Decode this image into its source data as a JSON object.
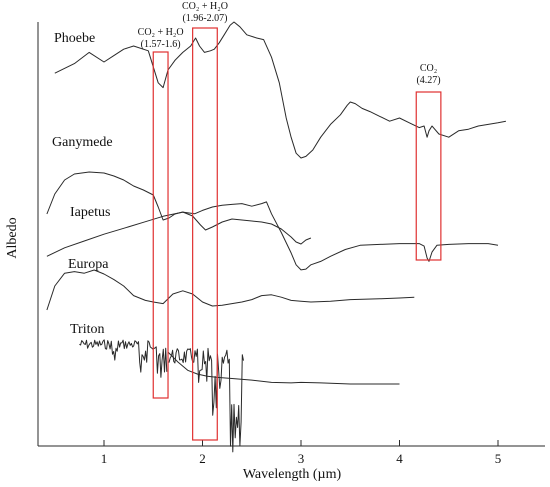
{
  "chart_data": {
    "type": "line",
    "xlabel": "Wavelength (µm)",
    "ylabel": "Albedo",
    "xlim": [
      0.35,
      5.4
    ],
    "xticks": [
      "1",
      "2",
      "3",
      "4",
      "5"
    ],
    "yaxis": "relative albedo, offset spectra, no tick values",
    "grid": false,
    "colors": {
      "spectra": "#2a2a2a",
      "band_box": "#e03030",
      "axis": "#2a2a2a"
    },
    "bands": [
      {
        "label_top": "CO₂ + H₂O",
        "label_bottom": "(1.57-1.6)",
        "range": [
          1.5,
          1.65
        ],
        "depth": "down to Triton"
      },
      {
        "label_top": "CO₂ + H₂O",
        "label_bottom": "(1.96-2.07)",
        "range": [
          1.9,
          2.15
        ],
        "depth": "down to Triton"
      },
      {
        "label_top": "CO₂",
        "label_bottom": "(4.27)",
        "range": [
          4.17,
          4.42
        ],
        "depth": "Phoebe to Iapetus"
      }
    ],
    "series": [
      {
        "name": "Phoebe",
        "points": [
          [
            0.5,
            0.22
          ],
          [
            0.7,
            0.16
          ],
          [
            0.85,
            0.09
          ],
          [
            1.0,
            0.15
          ],
          [
            1.1,
            0.11
          ],
          [
            1.2,
            0.07
          ],
          [
            1.3,
            0.05
          ],
          [
            1.45,
            0.08
          ],
          [
            1.55,
            0.28
          ],
          [
            1.6,
            0.31
          ],
          [
            1.65,
            0.2
          ],
          [
            1.72,
            0.14
          ],
          [
            1.8,
            0.09
          ],
          [
            1.88,
            0.05
          ],
          [
            1.93,
            0.0
          ],
          [
            1.97,
            0.05
          ],
          [
            2.02,
            0.09
          ],
          [
            2.08,
            0.08
          ],
          [
            2.12,
            0.07
          ],
          [
            2.17,
            0.03
          ],
          [
            2.22,
            -0.02
          ],
          [
            2.28,
            -0.08
          ],
          [
            2.32,
            -0.1
          ],
          [
            2.38,
            -0.07
          ],
          [
            2.45,
            -0.02
          ],
          [
            2.55,
            0.0
          ],
          [
            2.62,
            0.01
          ],
          [
            2.7,
            0.12
          ],
          [
            2.78,
            0.28
          ],
          [
            2.85,
            0.5
          ],
          [
            2.9,
            0.62
          ],
          [
            2.95,
            0.72
          ],
          [
            3.0,
            0.75
          ],
          [
            3.05,
            0.74
          ],
          [
            3.12,
            0.7
          ],
          [
            3.2,
            0.62
          ],
          [
            3.3,
            0.54
          ],
          [
            3.4,
            0.48
          ],
          [
            3.47,
            0.42
          ],
          [
            3.5,
            0.4
          ],
          [
            3.55,
            0.41
          ],
          [
            3.62,
            0.44
          ],
          [
            3.7,
            0.46
          ],
          [
            3.8,
            0.49
          ],
          [
            3.9,
            0.52
          ],
          [
            4.0,
            0.5
          ],
          [
            4.1,
            0.53
          ],
          [
            4.2,
            0.56
          ],
          [
            4.25,
            0.55
          ],
          [
            4.28,
            0.62
          ],
          [
            4.3,
            0.58
          ],
          [
            4.33,
            0.55
          ],
          [
            4.4,
            0.6
          ],
          [
            4.5,
            0.62
          ],
          [
            4.6,
            0.58
          ],
          [
            4.7,
            0.57
          ],
          [
            4.8,
            0.55
          ],
          [
            4.9,
            0.54
          ],
          [
            5.0,
            0.53
          ],
          [
            5.08,
            0.52
          ]
        ]
      },
      {
        "name": "Ganymede",
        "points": [
          [
            0.42,
            0.62
          ],
          [
            0.5,
            0.42
          ],
          [
            0.6,
            0.28
          ],
          [
            0.7,
            0.22
          ],
          [
            0.85,
            0.2
          ],
          [
            1.0,
            0.21
          ],
          [
            1.1,
            0.24
          ],
          [
            1.2,
            0.28
          ],
          [
            1.3,
            0.34
          ],
          [
            1.4,
            0.38
          ],
          [
            1.5,
            0.43
          ],
          [
            1.55,
            0.55
          ],
          [
            1.6,
            0.68
          ],
          [
            1.66,
            0.66
          ],
          [
            1.72,
            0.62
          ],
          [
            1.8,
            0.6
          ],
          [
            1.9,
            0.64
          ],
          [
            1.98,
            0.73
          ],
          [
            2.03,
            0.78
          ],
          [
            2.1,
            0.75
          ],
          [
            2.2,
            0.7
          ],
          [
            2.3,
            0.67
          ],
          [
            2.4,
            0.68
          ],
          [
            2.5,
            0.69
          ],
          [
            2.6,
            0.7
          ],
          [
            2.7,
            0.72
          ],
          [
            2.8,
            0.77
          ],
          [
            2.9,
            0.85
          ],
          [
            2.95,
            0.9
          ],
          [
            3.0,
            0.92
          ],
          [
            3.05,
            0.88
          ],
          [
            3.1,
            0.86
          ]
        ]
      },
      {
        "name": "Iapetus",
        "points": [
          [
            0.42,
            0.78
          ],
          [
            0.6,
            0.68
          ],
          [
            0.8,
            0.6
          ],
          [
            1.0,
            0.52
          ],
          [
            1.2,
            0.45
          ],
          [
            1.4,
            0.38
          ],
          [
            1.6,
            0.31
          ],
          [
            1.8,
            0.26
          ],
          [
            1.92,
            0.28
          ],
          [
            2.0,
            0.24
          ],
          [
            2.1,
            0.2
          ],
          [
            2.2,
            0.18
          ],
          [
            2.3,
            0.17
          ],
          [
            2.4,
            0.16
          ],
          [
            2.5,
            0.19
          ],
          [
            2.6,
            0.16
          ],
          [
            2.65,
            0.14
          ],
          [
            2.7,
            0.28
          ],
          [
            2.8,
            0.5
          ],
          [
            2.9,
            0.74
          ],
          [
            2.95,
            0.88
          ],
          [
            3.0,
            0.94
          ],
          [
            3.05,
            0.93
          ],
          [
            3.1,
            0.88
          ],
          [
            3.2,
            0.84
          ],
          [
            3.3,
            0.78
          ],
          [
            3.45,
            0.7
          ],
          [
            3.6,
            0.65
          ],
          [
            3.8,
            0.64
          ],
          [
            4.0,
            0.63
          ],
          [
            4.2,
            0.63
          ],
          [
            4.25,
            0.66
          ],
          [
            4.28,
            0.8
          ],
          [
            4.3,
            0.84
          ],
          [
            4.33,
            0.73
          ],
          [
            4.38,
            0.65
          ],
          [
            4.5,
            0.64
          ],
          [
            4.7,
            0.63
          ],
          [
            4.9,
            0.63
          ],
          [
            5.0,
            0.65
          ]
        ]
      },
      {
        "name": "Europa",
        "points": [
          [
            0.42,
            0.9
          ],
          [
            0.5,
            0.6
          ],
          [
            0.6,
            0.44
          ],
          [
            0.7,
            0.42
          ],
          [
            0.8,
            0.44
          ],
          [
            0.9,
            0.4
          ],
          [
            1.0,
            0.45
          ],
          [
            1.1,
            0.52
          ],
          [
            1.2,
            0.6
          ],
          [
            1.3,
            0.72
          ],
          [
            1.42,
            0.78
          ],
          [
            1.5,
            0.8
          ],
          [
            1.6,
            0.82
          ],
          [
            1.7,
            0.7
          ],
          [
            1.8,
            0.66
          ],
          [
            1.9,
            0.7
          ],
          [
            2.0,
            0.8
          ],
          [
            2.1,
            0.85
          ],
          [
            2.2,
            0.84
          ],
          [
            2.3,
            0.82
          ],
          [
            2.4,
            0.8
          ],
          [
            2.5,
            0.77
          ],
          [
            2.6,
            0.72
          ],
          [
            2.7,
            0.71
          ],
          [
            2.8,
            0.74
          ],
          [
            2.9,
            0.78
          ],
          [
            3.0,
            0.79
          ],
          [
            3.1,
            0.8
          ],
          [
            3.3,
            0.79
          ],
          [
            3.5,
            0.77
          ],
          [
            3.8,
            0.76
          ],
          [
            4.0,
            0.75
          ],
          [
            4.15,
            0.74
          ]
        ]
      },
      {
        "name": "Triton",
        "points": [
          [
            1.65,
            0.22
          ],
          [
            1.75,
            0.4
          ],
          [
            1.85,
            0.55
          ],
          [
            1.95,
            0.62
          ],
          [
            2.05,
            0.66
          ],
          [
            2.15,
            0.68
          ],
          [
            2.3,
            0.7
          ],
          [
            2.5,
            0.73
          ],
          [
            2.7,
            0.77
          ],
          [
            2.9,
            0.78
          ],
          [
            3.0,
            0.77
          ],
          [
            3.2,
            0.78
          ],
          [
            3.5,
            0.8
          ],
          [
            3.8,
            0.8
          ],
          [
            4.0,
            0.8
          ]
        ]
      }
    ],
    "triton_absorption_region": [
      0.75,
      2.42
    ]
  }
}
